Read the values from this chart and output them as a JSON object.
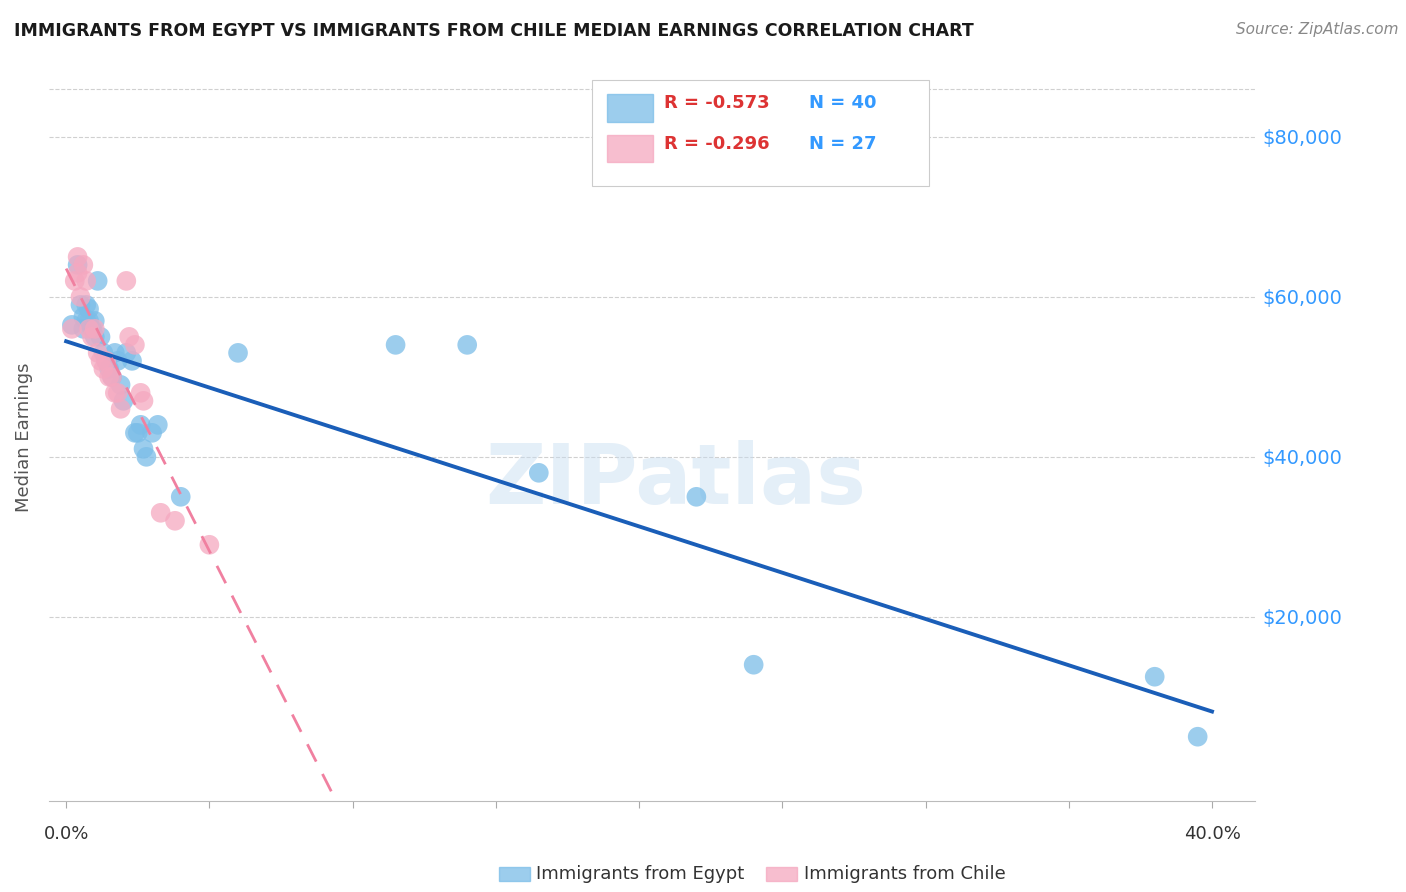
{
  "title": "IMMIGRANTS FROM EGYPT VS IMMIGRANTS FROM CHILE MEDIAN EARNINGS CORRELATION CHART",
  "source": "Source: ZipAtlas.com",
  "ylabel": "Median Earnings",
  "legend1_r": "-0.573",
  "legend1_n": "40",
  "legend2_r": "-0.296",
  "legend2_n": "27",
  "legend1_label": "Immigrants from Egypt",
  "legend2_label": "Immigrants from Chile",
  "watermark": "ZIPatlas",
  "egypt_color": "#7bbde8",
  "chile_color": "#f5a8c0",
  "egypt_line_color": "#1a5eb8",
  "chile_line_color": "#f080a0",
  "ytick_color": "#3399ff",
  "egypt_points": [
    [
      0.002,
      56500
    ],
    [
      0.004,
      64000
    ],
    [
      0.005,
      59000
    ],
    [
      0.006,
      57500
    ],
    [
      0.006,
      56000
    ],
    [
      0.007,
      57000
    ],
    [
      0.007,
      59000
    ],
    [
      0.008,
      57000
    ],
    [
      0.008,
      58500
    ],
    [
      0.009,
      56000
    ],
    [
      0.01,
      55000
    ],
    [
      0.01,
      57000
    ],
    [
      0.011,
      62000
    ],
    [
      0.012,
      55000
    ],
    [
      0.013,
      53000
    ],
    [
      0.014,
      52000
    ],
    [
      0.015,
      51000
    ],
    [
      0.016,
      50000
    ],
    [
      0.017,
      53000
    ],
    [
      0.018,
      52000
    ],
    [
      0.019,
      49000
    ],
    [
      0.02,
      47000
    ],
    [
      0.021,
      53000
    ],
    [
      0.023,
      52000
    ],
    [
      0.024,
      43000
    ],
    [
      0.025,
      43000
    ],
    [
      0.026,
      44000
    ],
    [
      0.027,
      41000
    ],
    [
      0.028,
      40000
    ],
    [
      0.03,
      43000
    ],
    [
      0.032,
      44000
    ],
    [
      0.04,
      35000
    ],
    [
      0.06,
      53000
    ],
    [
      0.115,
      54000
    ],
    [
      0.14,
      54000
    ],
    [
      0.165,
      38000
    ],
    [
      0.22,
      35000
    ],
    [
      0.24,
      14000
    ],
    [
      0.38,
      12500
    ],
    [
      0.395,
      5000
    ]
  ],
  "chile_points": [
    [
      0.002,
      56000
    ],
    [
      0.003,
      62000
    ],
    [
      0.004,
      65000
    ],
    [
      0.004,
      63000
    ],
    [
      0.005,
      60000
    ],
    [
      0.006,
      64000
    ],
    [
      0.007,
      62000
    ],
    [
      0.008,
      56000
    ],
    [
      0.009,
      55000
    ],
    [
      0.01,
      56000
    ],
    [
      0.011,
      53000
    ],
    [
      0.012,
      52000
    ],
    [
      0.013,
      51000
    ],
    [
      0.014,
      52000
    ],
    [
      0.015,
      50000
    ],
    [
      0.016,
      50000
    ],
    [
      0.017,
      48000
    ],
    [
      0.018,
      48000
    ],
    [
      0.019,
      46000
    ],
    [
      0.021,
      62000
    ],
    [
      0.022,
      55000
    ],
    [
      0.024,
      54000
    ],
    [
      0.026,
      48000
    ],
    [
      0.027,
      47000
    ],
    [
      0.033,
      33000
    ],
    [
      0.038,
      32000
    ],
    [
      0.05,
      29000
    ]
  ],
  "xmin": 0.0,
  "xmax": 0.4,
  "ymin": 0,
  "ymax": 88000,
  "yticks": [
    20000,
    40000,
    60000,
    80000
  ],
  "ytick_labels": [
    "$20,000",
    "$40,000",
    "$60,000",
    "$80,000"
  ]
}
